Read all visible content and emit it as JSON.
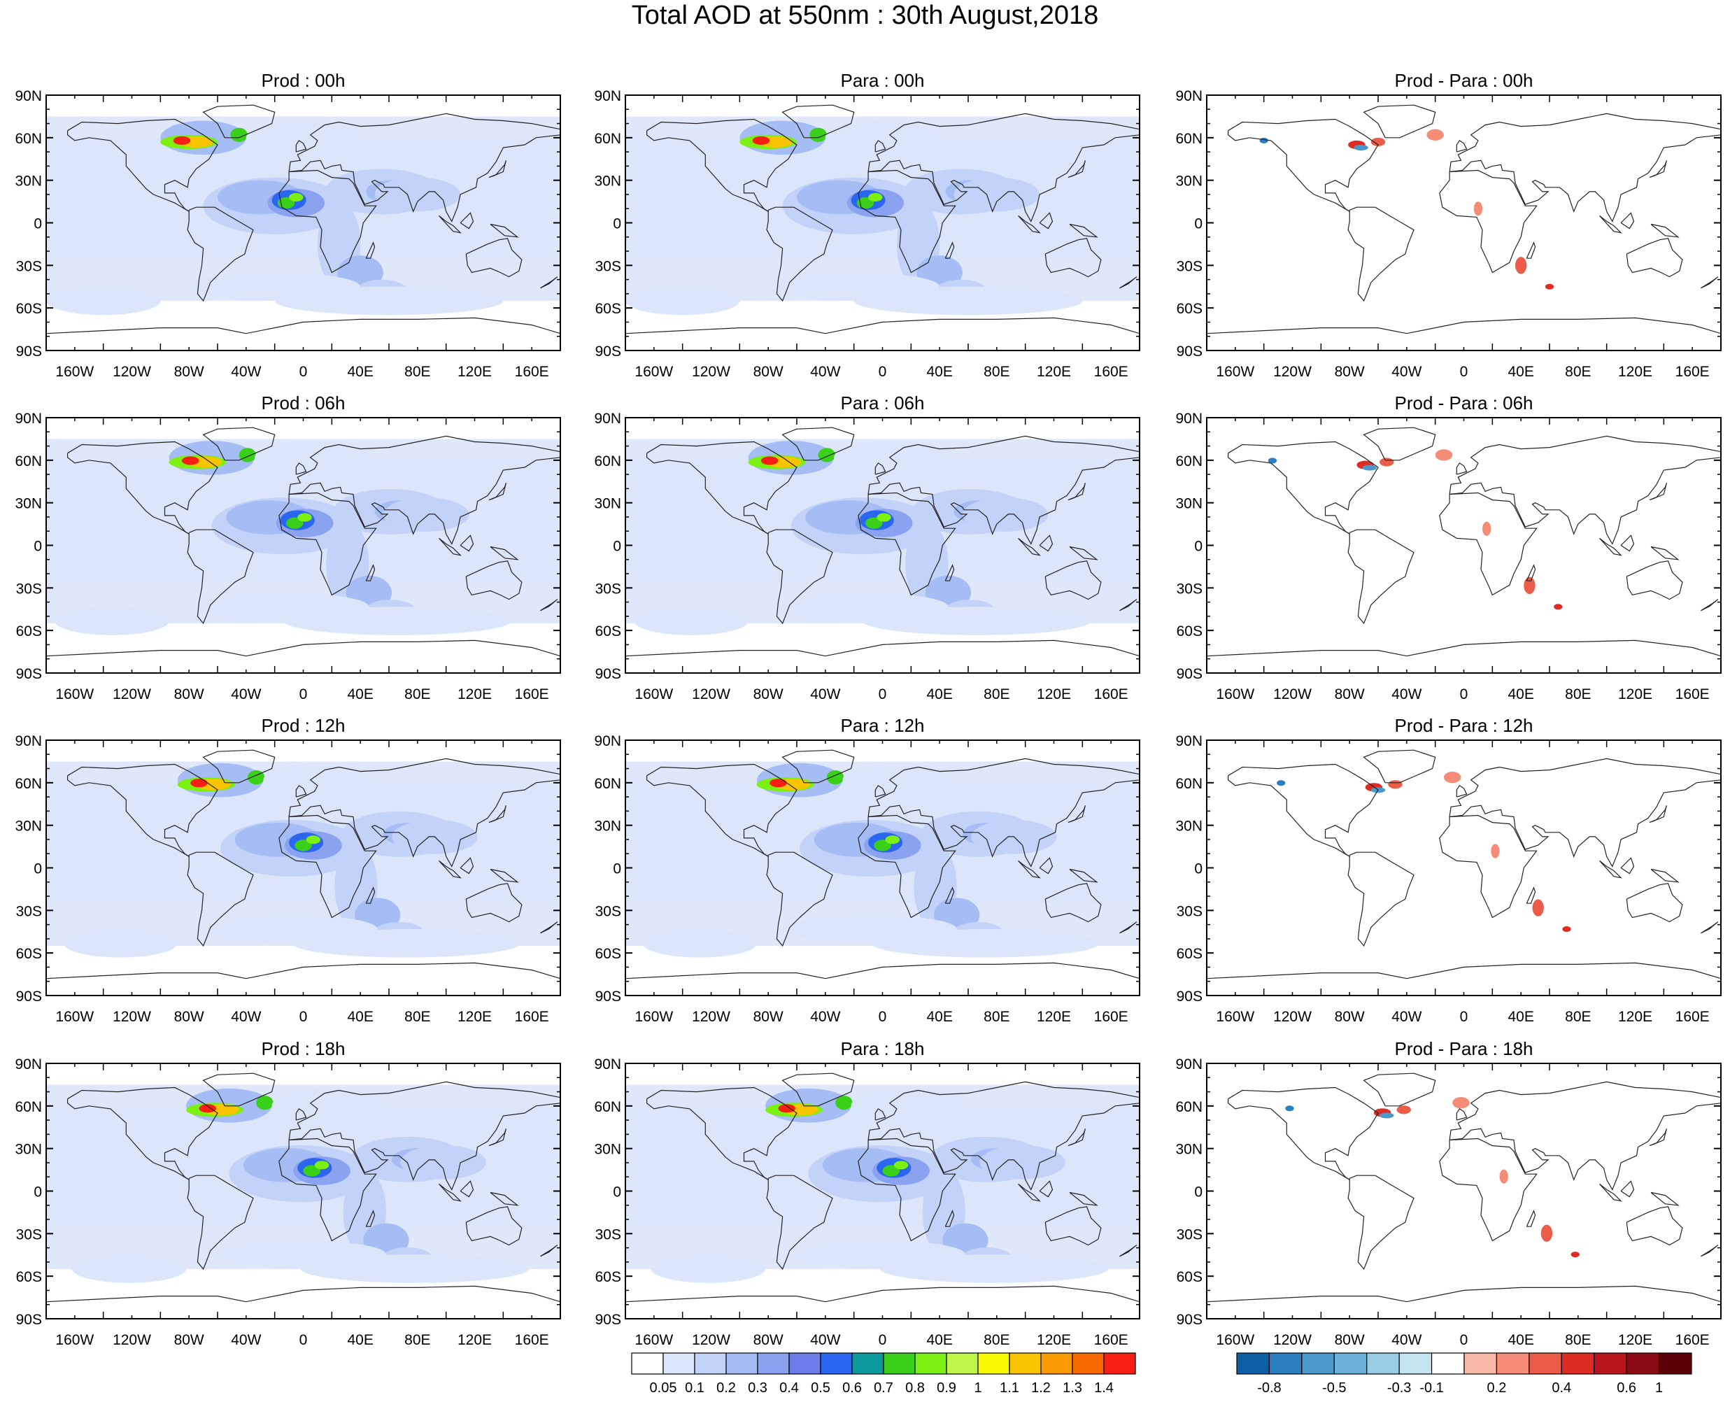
{
  "title": "Total AOD at 550nm : 30th August,2018",
  "lat_ticks": [
    "90N",
    "60N",
    "30N",
    "0",
    "30S",
    "60S",
    "90S"
  ],
  "lon_ticks": [
    "160W",
    "120W",
    "80W",
    "40W",
    "0",
    "40E",
    "80E",
    "120E",
    "160E"
  ],
  "panels": [
    {
      "title": "Prod : 00h",
      "kind": "aod"
    },
    {
      "title": "Para : 00h",
      "kind": "aod"
    },
    {
      "title": "Prod - Para : 00h",
      "kind": "diff"
    },
    {
      "title": "Prod : 06h",
      "kind": "aod"
    },
    {
      "title": "Para : 06h",
      "kind": "aod"
    },
    {
      "title": "Prod - Para : 06h",
      "kind": "diff"
    },
    {
      "title": "Prod : 12h",
      "kind": "aod"
    },
    {
      "title": "Para : 12h",
      "kind": "aod"
    },
    {
      "title": "Prod - Para : 12h",
      "kind": "diff"
    },
    {
      "title": "Prod : 18h",
      "kind": "aod"
    },
    {
      "title": "Para : 18h",
      "kind": "aod"
    },
    {
      "title": "Prod - Para : 18h",
      "kind": "diff"
    }
  ],
  "colorbars": {
    "aod": {
      "labels": [
        "0.05",
        "0.1",
        "0.2",
        "0.3",
        "0.4",
        "0.5",
        "0.6",
        "0.7",
        "0.8",
        "0.9",
        "1",
        "1.1",
        "1.2",
        "1.3",
        "1.4"
      ],
      "colors": [
        "#ffffff",
        "#dce6fa",
        "#c2d2f8",
        "#a6bcf4",
        "#8aa2f0",
        "#6c7ce8",
        "#2a66f0",
        "#0a9a9c",
        "#3ad01a",
        "#7cf010",
        "#c0f54a",
        "#f8f800",
        "#f8c400",
        "#f89a00",
        "#f86a00",
        "#f81e14"
      ]
    },
    "diff": {
      "labels": [
        "-0.8",
        "-0.5",
        "-0.3",
        "-0.1",
        "0.2",
        "0.4",
        "0.6",
        "1"
      ],
      "colors": [
        "#0b5fa5",
        "#2a7fc0",
        "#4a98cc",
        "#6cb2d8",
        "#98cce4",
        "#c4e4f0",
        "#ffffff",
        "#f8b8a8",
        "#f48c78",
        "#ec5c48",
        "#dc2c24",
        "#b8141e",
        "#8c0a14",
        "#5c0008"
      ]
    }
  }
}
